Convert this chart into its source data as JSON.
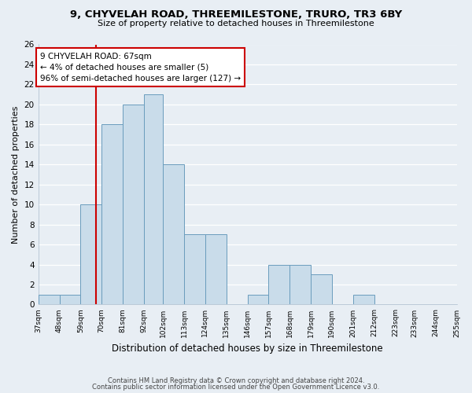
{
  "title": "9, CHYVELAH ROAD, THREEMILESTONE, TRURO, TR3 6BY",
  "subtitle": "Size of property relative to detached houses in Threemilestone",
  "xlabel": "Distribution of detached houses by size in Threemilestone",
  "ylabel": "Number of detached properties",
  "bin_labels": [
    "37sqm",
    "48sqm",
    "59sqm",
    "70sqm",
    "81sqm",
    "92sqm",
    "102sqm",
    "113sqm",
    "124sqm",
    "135sqm",
    "146sqm",
    "157sqm",
    "168sqm",
    "179sqm",
    "190sqm",
    "201sqm",
    "212sqm",
    "223sqm",
    "233sqm",
    "244sqm",
    "255sqm"
  ],
  "bin_edges": [
    37,
    48,
    59,
    70,
    81,
    92,
    102,
    113,
    124,
    135,
    146,
    157,
    168,
    179,
    190,
    201,
    212,
    223,
    233,
    244,
    255
  ],
  "bar_values": [
    1,
    1,
    10,
    18,
    20,
    21,
    14,
    7,
    7,
    0,
    1,
    4,
    4,
    3,
    0,
    1,
    0,
    0,
    0,
    0
  ],
  "bar_color": "#c9dcea",
  "bar_edge_color": "#6a9cbd",
  "vline_x": 67,
  "vline_color": "#cc0000",
  "annotation_text": "9 CHYVELAH ROAD: 67sqm\n← 4% of detached houses are smaller (5)\n96% of semi-detached houses are larger (127) →",
  "annotation_box_edge": "#cc0000",
  "ylim": [
    0,
    26
  ],
  "yticks": [
    0,
    2,
    4,
    6,
    8,
    10,
    12,
    14,
    16,
    18,
    20,
    22,
    24,
    26
  ],
  "footer1": "Contains HM Land Registry data © Crown copyright and database right 2024.",
  "footer2": "Contains public sector information licensed under the Open Government Licence v3.0.",
  "background_color": "#e8eef4",
  "grid_color": "#ffffff",
  "spine_color": "#aabbcc"
}
